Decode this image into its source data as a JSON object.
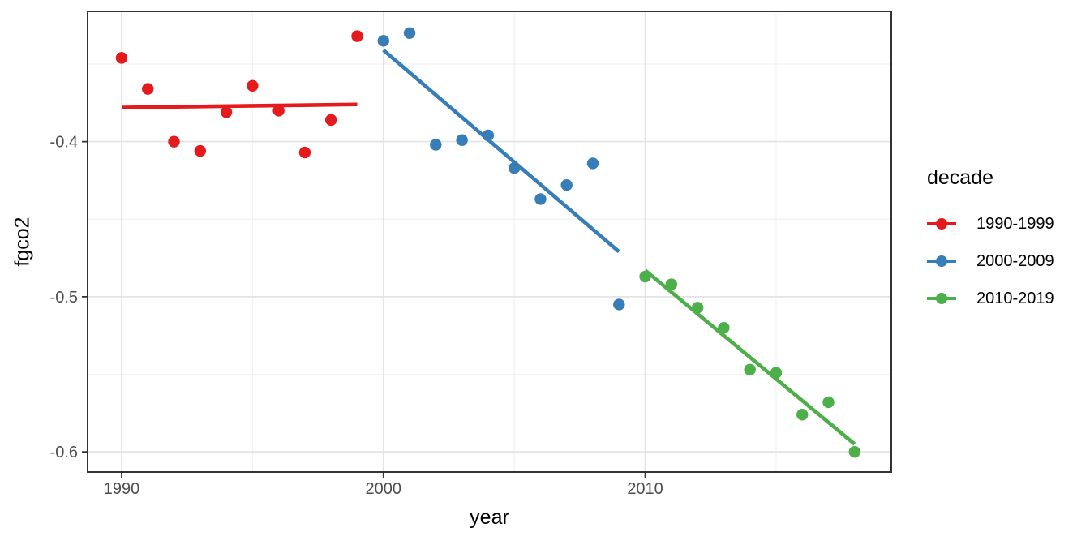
{
  "figure": {
    "background": "#FFFFFF",
    "panel_border_color": "#333333",
    "grid_major_color": "#E4E4E4",
    "grid_minor_color": "#F1F1F1",
    "tick_color": "#333333",
    "tick_label_color": "#4D4D4D",
    "axis_title_color": "#000000"
  },
  "chart_data": {
    "type": "scatter",
    "title": "",
    "xlabel": "year",
    "ylabel": "fgco2",
    "grid": true,
    "xlim": [
      1988.7,
      2019.4
    ],
    "ylim": [
      -0.613,
      -0.316
    ],
    "x_ticks": [
      {
        "value": 1990,
        "label": "1990"
      },
      {
        "value": 2000,
        "label": "2000"
      },
      {
        "value": 2010,
        "label": "2010"
      }
    ],
    "y_ticks": [
      {
        "value": -0.4,
        "label": "-0.4"
      },
      {
        "value": -0.5,
        "label": "-0.5"
      },
      {
        "value": -0.6,
        "label": "-0.6"
      }
    ],
    "x_minor": [
      1995,
      2005,
      2015
    ],
    "y_minor": [
      -0.35,
      -0.45,
      -0.55
    ],
    "legend": {
      "title": "decade",
      "position": "right"
    },
    "series": [
      {
        "name": "1990-1999",
        "color": "#E41A1C",
        "x": [
          1990,
          1991,
          1992,
          1993,
          1994,
          1995,
          1996,
          1997,
          1998,
          1999
        ],
        "y": [
          -0.346,
          -0.366,
          -0.4,
          -0.406,
          -0.381,
          -0.364,
          -0.38,
          -0.407,
          -0.386,
          -0.332
        ],
        "trend_x": [
          1990,
          1999
        ],
        "trend_y": [
          -0.378,
          -0.376
        ]
      },
      {
        "name": "2000-2009",
        "color": "#377EB8",
        "x": [
          2000,
          2001,
          2002,
          2003,
          2004,
          2005,
          2006,
          2007,
          2008,
          2009
        ],
        "y": [
          -0.335,
          -0.33,
          -0.402,
          -0.399,
          -0.396,
          -0.417,
          -0.437,
          -0.428,
          -0.414,
          -0.505
        ],
        "trend_x": [
          2000,
          2009
        ],
        "trend_y": [
          -0.341,
          -0.471
        ]
      },
      {
        "name": "2010-2019",
        "color": "#4DAF4A",
        "x": [
          2010,
          2011,
          2012,
          2013,
          2014,
          2015,
          2016,
          2017,
          2018
        ],
        "y": [
          -0.487,
          -0.492,
          -0.507,
          -0.52,
          -0.547,
          -0.549,
          -0.576,
          -0.568,
          -0.6
        ],
        "trend_x": [
          2010,
          2018
        ],
        "trend_y": [
          -0.483,
          -0.595
        ]
      }
    ]
  }
}
